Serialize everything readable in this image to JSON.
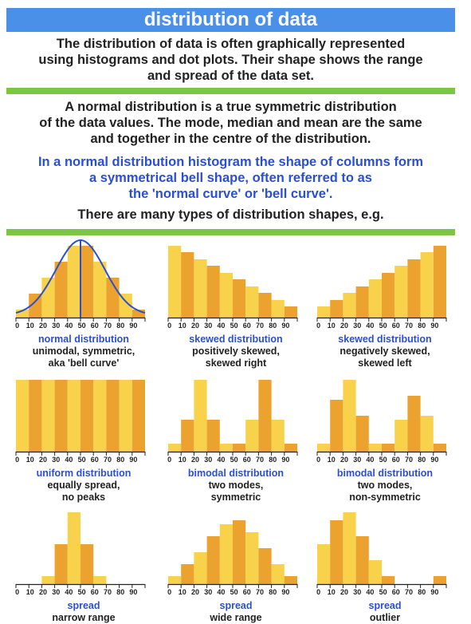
{
  "header": {
    "title": "distribution of data"
  },
  "intro": {
    "p1": [
      "The distribution of data is often graphically represented",
      "using histograms and dot plots. Their shape shows the range",
      "and spread of the data set."
    ],
    "p2": [
      "A normal distribution is a true symmetric distribution",
      "of the data values. The mode, median and mean are the same",
      "and together in the centre of the distribution."
    ],
    "p3": [
      "In a normal distribution histogram the shape of columns form",
      "a symmetrical bell shape, often referred to as",
      "the 'normal curve' or 'bell curve'."
    ],
    "p4": "There are many types of distribution shapes, e.g."
  },
  "colors": {
    "bar_dark": "#eba22f",
    "bar_light": "#f7d24a",
    "curve": "#2a4fd0",
    "title_bg": "#4a90e8",
    "divider": "#7dc642",
    "caption_blue": "#2a4fd0"
  },
  "chart_data": [
    {
      "type": "bar",
      "title": "normal distribution",
      "caption": [
        "unimodal, symmetric,",
        "aka 'bell curve'"
      ],
      "x": [
        0,
        10,
        20,
        30,
        40,
        50,
        60,
        70,
        80,
        90
      ],
      "values": [
        1,
        3,
        5,
        7,
        9,
        9,
        7,
        5,
        3,
        1
      ],
      "ylim": [
        0,
        10
      ],
      "overlay": "bell-curve"
    },
    {
      "type": "bar",
      "title": "skewed distribution",
      "caption": [
        "positively skewed,",
        "skewed right"
      ],
      "x": [
        0,
        10,
        20,
        30,
        40,
        50,
        60,
        70,
        80,
        90
      ],
      "values": [
        9,
        8.2,
        7.3,
        6.5,
        5.6,
        4.8,
        3.9,
        3.1,
        2.2,
        1.4
      ],
      "ylim": [
        0,
        10
      ]
    },
    {
      "type": "bar",
      "title": "skewed distribution",
      "caption": [
        "negatively skewed,",
        "skewed left"
      ],
      "x": [
        0,
        10,
        20,
        30,
        40,
        50,
        60,
        70,
        80,
        90
      ],
      "values": [
        1.4,
        2.2,
        3.1,
        3.9,
        4.8,
        5.6,
        6.5,
        7.3,
        8.2,
        9
      ],
      "ylim": [
        0,
        10
      ]
    },
    {
      "type": "bar",
      "title": "uniform distribution",
      "caption": [
        "equally spread,",
        "no peaks"
      ],
      "x": [
        0,
        10,
        20,
        30,
        40,
        50,
        60,
        70,
        80,
        90
      ],
      "values": [
        9,
        9,
        9,
        9,
        9,
        9,
        9,
        9,
        9,
        9
      ],
      "ylim": [
        0,
        10
      ]
    },
    {
      "type": "bar",
      "title": "bimodal distribution",
      "caption": [
        "two modes,",
        "symmetric"
      ],
      "x": [
        0,
        10,
        20,
        30,
        40,
        50,
        60,
        70,
        80,
        90
      ],
      "values": [
        1,
        4,
        9,
        4,
        1,
        1,
        4,
        9,
        4,
        1
      ],
      "ylim": [
        0,
        10
      ]
    },
    {
      "type": "bar",
      "title": "bimodal distribution",
      "caption": [
        "two modes,",
        "non-symmetric"
      ],
      "x": [
        0,
        10,
        20,
        30,
        40,
        50,
        60,
        70,
        80,
        90
      ],
      "values": [
        1,
        6.5,
        9,
        4.5,
        1,
        1,
        4,
        7,
        4.5,
        1
      ],
      "ylim": [
        0,
        10
      ]
    },
    {
      "type": "bar",
      "title": "spread",
      "caption": [
        "narrow range"
      ],
      "x": [
        0,
        10,
        20,
        30,
        40,
        50,
        60,
        70,
        80,
        90
      ],
      "values": [
        0,
        0,
        1,
        5,
        9,
        5,
        1,
        0,
        0,
        0
      ],
      "ylim": [
        0,
        10
      ]
    },
    {
      "type": "bar",
      "title": "spread",
      "caption": [
        "wide range"
      ],
      "x": [
        0,
        10,
        20,
        30,
        40,
        50,
        60,
        70,
        80,
        90
      ],
      "values": [
        1,
        2.5,
        4,
        6,
        7.5,
        8,
        6.5,
        4.5,
        2.5,
        1
      ],
      "ylim": [
        0,
        10
      ]
    },
    {
      "type": "bar",
      "title": "spread",
      "caption": [
        "outlier"
      ],
      "x": [
        0,
        10,
        20,
        30,
        40,
        50,
        60,
        70,
        80,
        90
      ],
      "values": [
        5,
        8,
        9,
        6,
        3,
        1,
        0,
        0,
        0,
        1
      ],
      "ylim": [
        0,
        10
      ]
    }
  ]
}
